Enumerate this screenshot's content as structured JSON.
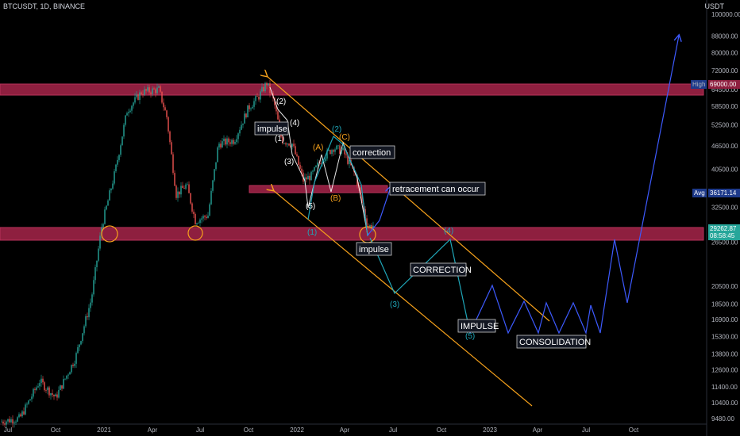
{
  "header": {
    "title": "BTCUSDT, 1D, BINANCE",
    "unit": "USDT"
  },
  "colors": {
    "zone": "#8e1f3f",
    "zone_edge": "#b8325a",
    "channel": "#f7a21b",
    "projection": "#3d5afe",
    "wave_teal": "#1fa6b8",
    "candle_up": "#26a69a",
    "candle_down": "#ef5350",
    "avg_tag": "#1e3a8a",
    "price_tag": "#26a69a"
  },
  "chart_data": {
    "type": "candlestick",
    "title": "BTCUSDT, 1D, BINANCE",
    "y_unit": "USDT",
    "y_scale": "log",
    "y_ticks": [
      "100000.00",
      "88000.00",
      "80000.00",
      "72000.00",
      "64500.00",
      "58500.00",
      "52500.00",
      "46500.00",
      "40500.00",
      "36171.14",
      "32500.00",
      "29262.87",
      "26500.00",
      "20500.00",
      "18500.00",
      "16900.00",
      "15300.00",
      "13800.00",
      "12600.00",
      "11400.00",
      "10400.00",
      "9480.00"
    ],
    "x_ticks": [
      "Jul",
      "Oct",
      "2021",
      "Apr",
      "Jul",
      "Oct",
      "2022",
      "Apr",
      "Jul",
      "Oct",
      "2023",
      "Apr",
      "Jul",
      "Oct"
    ],
    "price_tags": {
      "high_label": "High",
      "high_value": "69000.00",
      "avg_label": "Avg",
      "avg_value": "36171.14",
      "last_value": "29262.87",
      "countdown": "08:58:45"
    },
    "resistance_zone": [
      66500,
      70500
    ],
    "support_zone": [
      27200,
      30200
    ],
    "mid_zone": [
      36900,
      38400
    ],
    "annotations": {
      "impulse_top": "impulse",
      "correction_top": "correction",
      "retracement": "retracement can occur",
      "impulse_low": "impulse",
      "correction_big": "CORRECTION",
      "impulse_big": "IMPULSE",
      "consolidation": "CONSOLIDATION"
    },
    "wave_labels": {
      "w1": "(1)",
      "w2": "(2)",
      "w3": "(3)",
      "w4": "(4)",
      "w5": "(5)",
      "wA": "(A)",
      "wB": "(B)",
      "wC": "(C)",
      "t1": "(1)",
      "t2": "(2)",
      "t3": "(3)",
      "t4": "(4)",
      "t5": "(5)"
    }
  }
}
